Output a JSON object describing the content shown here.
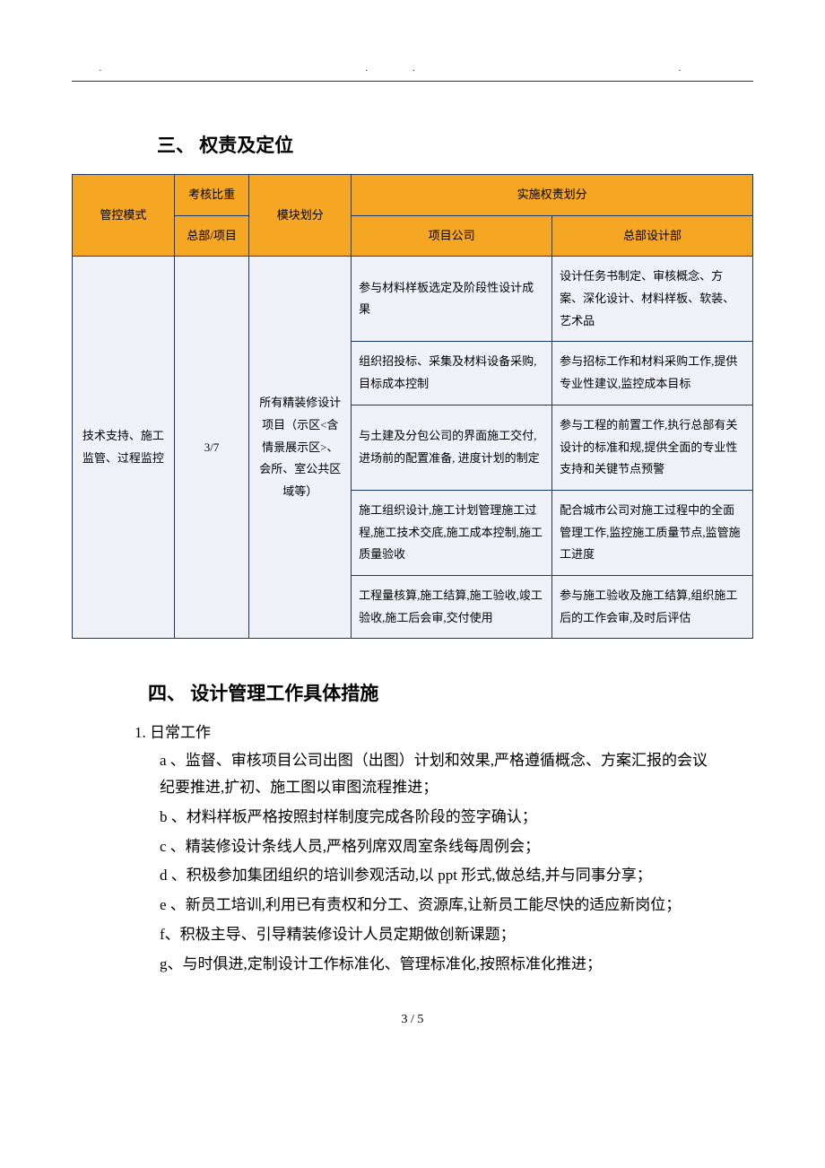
{
  "header_dots": ".    ..    .",
  "section3": {
    "title": "三、 权责及定位",
    "columns": {
      "mode": "管控模式",
      "ratio": "考核比重",
      "ratio_sub": "总部/项目",
      "module": "模块划分",
      "impl_group": "实施权责划分",
      "proj_company": "项目公司",
      "hq_design": "总部设计部"
    },
    "data": {
      "mode": "技术支持、施工监管、过程监控",
      "ratio": "3/7",
      "module": "所有精装修设计项目（示区<含情景展示区>、会所、室公共区域等）",
      "rows": [
        {
          "proj": "参与材料样板选定及阶段性设计成果",
          "hq": "设计任务书制定、审核概念、方案、深化设计、材料样板、软装、艺术品"
        },
        {
          "proj": "组织招投标、采集及材料设备采购,目标成本控制",
          "hq": "参与招标工作和材料采购工作,提供专业性建议,监控成本目标"
        },
        {
          "proj": "与土建及分包公司的界面施工交付,进场前的配置准备, 进度计划的制定",
          "hq": "参与工程的前置工作,执行总部有关设计的标准和规,提供全面的专业性支持和关键节点预警"
        },
        {
          "proj": "施工组织设计,施工计划管理施工过程,施工技术交底,施工成本控制,施工质量验收",
          "hq": "配合城市公司对施工过程中的全面管理工作,监控施工质量节点,监管施工进度"
        },
        {
          "proj": "工程量核算,施工结算,施工验收,竣工验收,施工后会审,交付使用",
          "hq": "参与施工验收及施工结算,组织施工后的工作会审,及时后评估"
        }
      ]
    }
  },
  "section4": {
    "title": "四、 设计管理工作具体措施",
    "list_num": "1.  日常工作",
    "items": [
      "a 、监督、审核项目公司出图（出图）计划和效果,严格遵循概念、方案汇报的会议纪要推进,扩初、施工图以审图流程推进；",
      "b 、材料样板严格按照封样制度完成各阶段的签字确认；",
      "c 、精装修设计条线人员,严格列席双周室条线每周例会；",
      "d 、积极参加集团组织的培训参观活动,以 ppt 形式,做总结,并与同事分享；",
      "e 、新员工培训,利用已有责权和分工、资源库,让新员工能尽快的适应新岗位；",
      "f、积极主导、引导精装修设计人员定期做创新课题；",
      "g、与时俱进,定制设计工作标准化、管理标准化,按照标准化推进；"
    ]
  },
  "footer": "3  /  5"
}
